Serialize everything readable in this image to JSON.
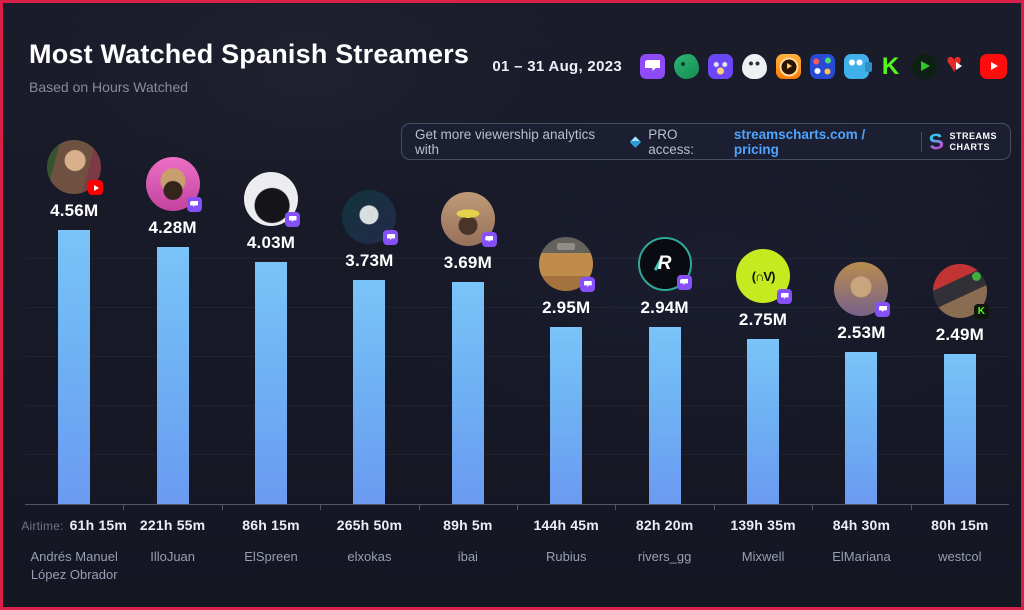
{
  "header": {
    "title": "Most Watched Spanish Streamers",
    "subtitle": "Based on Hours Watched",
    "date_range": "01 – 31 Aug, 2023"
  },
  "platform_bar": {
    "icons": [
      {
        "name": "twitch-icon",
        "css": "pi-twitch"
      },
      {
        "name": "trovo-icon",
        "css": "pi-trovo"
      },
      {
        "name": "vk-play-icon",
        "css": "pi-vkplay"
      },
      {
        "name": "white-mascot-platform-icon",
        "css": "pi-mascot"
      },
      {
        "name": "orange-play-platform-icon",
        "css": "pi-orange"
      },
      {
        "name": "pixel-face-platform-icon",
        "css": "pi-pixel"
      },
      {
        "name": "camera-mascot-platform-icon",
        "css": "pi-camera"
      },
      {
        "name": "kick-icon",
        "css": "pi-kickbig"
      },
      {
        "name": "green-play-platform-icon",
        "css": "pi-greenplay"
      },
      {
        "name": "heart-play-platform-icon",
        "css": "pi-heart"
      },
      {
        "name": "youtube-icon",
        "css": "pi-youtube"
      }
    ]
  },
  "banner": {
    "text_before": "Get more viewership analytics with",
    "diamond_icon": "pro-diamond-icon",
    "pro_text": "PRO access:",
    "link_text": "streamscharts.com / pricing",
    "logo_line1": "STREAMS",
    "logo_line2": "CHARTS",
    "logo_glyph": "S"
  },
  "colors": {
    "frame_border": "#d92049",
    "bar": "#6fb2f4",
    "link": "#4fa4ff",
    "background": "#171927"
  },
  "chart_data": {
    "type": "bar",
    "title": "Most Watched Spanish Streamers",
    "subtitle": "Based on Hours Watched",
    "period": "01 – 31 Aug, 2023",
    "unit": "Hours Watched (millions)",
    "ylim": [
      0,
      4.56
    ],
    "grid": "faint horizontal",
    "airtime_label": "Airtime:",
    "categories": [
      "Andrés Manuel López Obrador",
      "IlloJuan",
      "ElSpreen",
      "elxokas",
      "ibai",
      "Rubius",
      "rivers_gg",
      "Mixwell",
      "ElMariana",
      "westcol"
    ],
    "values": [
      4.56,
      4.28,
      4.03,
      3.73,
      3.69,
      2.95,
      2.94,
      2.75,
      2.53,
      2.49
    ],
    "streamers": [
      {
        "name": "Andrés Manuel López Obrador",
        "value": 4.56,
        "value_label": "4.56M",
        "airtime": "61h 15m",
        "platform": "youtube"
      },
      {
        "name": "IlloJuan",
        "value": 4.28,
        "value_label": "4.28M",
        "airtime": "221h 55m",
        "platform": "twitch"
      },
      {
        "name": "ElSpreen",
        "value": 4.03,
        "value_label": "4.03M",
        "airtime": "86h 15m",
        "platform": "twitch"
      },
      {
        "name": "elxokas",
        "value": 3.73,
        "value_label": "3.73M",
        "airtime": "265h 50m",
        "platform": "twitch"
      },
      {
        "name": "ibai",
        "value": 3.69,
        "value_label": "3.69M",
        "airtime": "89h 5m",
        "platform": "twitch"
      },
      {
        "name": "Rubius",
        "value": 2.95,
        "value_label": "2.95M",
        "airtime": "144h 45m",
        "platform": "twitch"
      },
      {
        "name": "rivers_gg",
        "value": 2.94,
        "value_label": "2.94M",
        "airtime": "82h 20m",
        "platform": "twitch"
      },
      {
        "name": "Mixwell",
        "value": 2.75,
        "value_label": "2.75M",
        "airtime": "139h 35m",
        "platform": "twitch"
      },
      {
        "name": "ElMariana",
        "value": 2.53,
        "value_label": "2.53M",
        "airtime": "84h 30m",
        "platform": "twitch"
      },
      {
        "name": "westcol",
        "value": 2.49,
        "value_label": "2.49M",
        "airtime": "80h 15m",
        "platform": "kick"
      }
    ]
  }
}
